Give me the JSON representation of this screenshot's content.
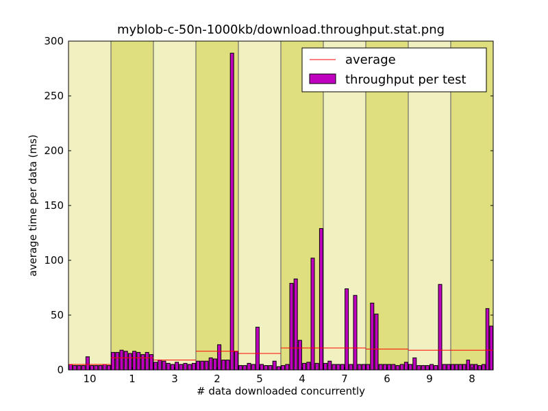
{
  "chart_data": {
    "type": "bar",
    "title": "myblob-c-50n-1000kb/download.throughput.stat.png",
    "xlabel": "# data downloaded concurrently",
    "ylabel": "average time per data (ms)",
    "ylim": [
      0,
      300
    ],
    "yticks": [
      "0",
      "50",
      "100",
      "150",
      "200",
      "250",
      "300"
    ],
    "legend_position": "top-right",
    "legend": [
      {
        "label": "average",
        "kind": "line"
      },
      {
        "label": "throughput per test",
        "kind": "bar"
      }
    ],
    "colors": {
      "bar_fill": "#bf00bf",
      "bar_edge": "#000000",
      "average_line": "#ff0000",
      "band_light": "#f0f0c0",
      "band_dark": "#dfdf80"
    },
    "groups": [
      {
        "label": "10",
        "average": 5,
        "values": [
          5,
          4,
          4,
          4,
          12,
          4,
          4,
          4,
          5,
          4
        ]
      },
      {
        "label": "1",
        "average": 11,
        "values": [
          16,
          16,
          18,
          17,
          15,
          17,
          16,
          14,
          16,
          14
        ]
      },
      {
        "label": "3",
        "average": 9,
        "values": [
          7,
          9,
          8,
          6,
          5,
          7,
          5,
          6,
          5,
          6
        ]
      },
      {
        "label": "2",
        "average": 17,
        "values": [
          8,
          8,
          8,
          11,
          10,
          23,
          9,
          9,
          289,
          17
        ]
      },
      {
        "label": "5",
        "average": 15,
        "values": [
          4,
          4,
          6,
          5,
          39,
          5,
          4,
          4,
          8,
          3
        ]
      },
      {
        "label": "4",
        "average": 20,
        "values": [
          4,
          5,
          79,
          83,
          27,
          6,
          7,
          102,
          6,
          129
        ]
      },
      {
        "label": "7",
        "average": 20,
        "values": [
          6,
          8,
          5,
          5,
          5,
          74,
          5,
          68,
          5,
          5
        ]
      },
      {
        "label": "6",
        "average": 19,
        "values": [
          5,
          61,
          51,
          5,
          5,
          5,
          5,
          4,
          5,
          7
        ]
      },
      {
        "label": "9",
        "average": 18,
        "values": [
          5,
          11,
          4,
          4,
          4,
          5,
          4,
          78,
          5,
          5
        ]
      },
      {
        "label": "8",
        "average": 18,
        "values": [
          5,
          5,
          5,
          5,
          9,
          5,
          5,
          4,
          5,
          56,
          40
        ]
      }
    ]
  }
}
